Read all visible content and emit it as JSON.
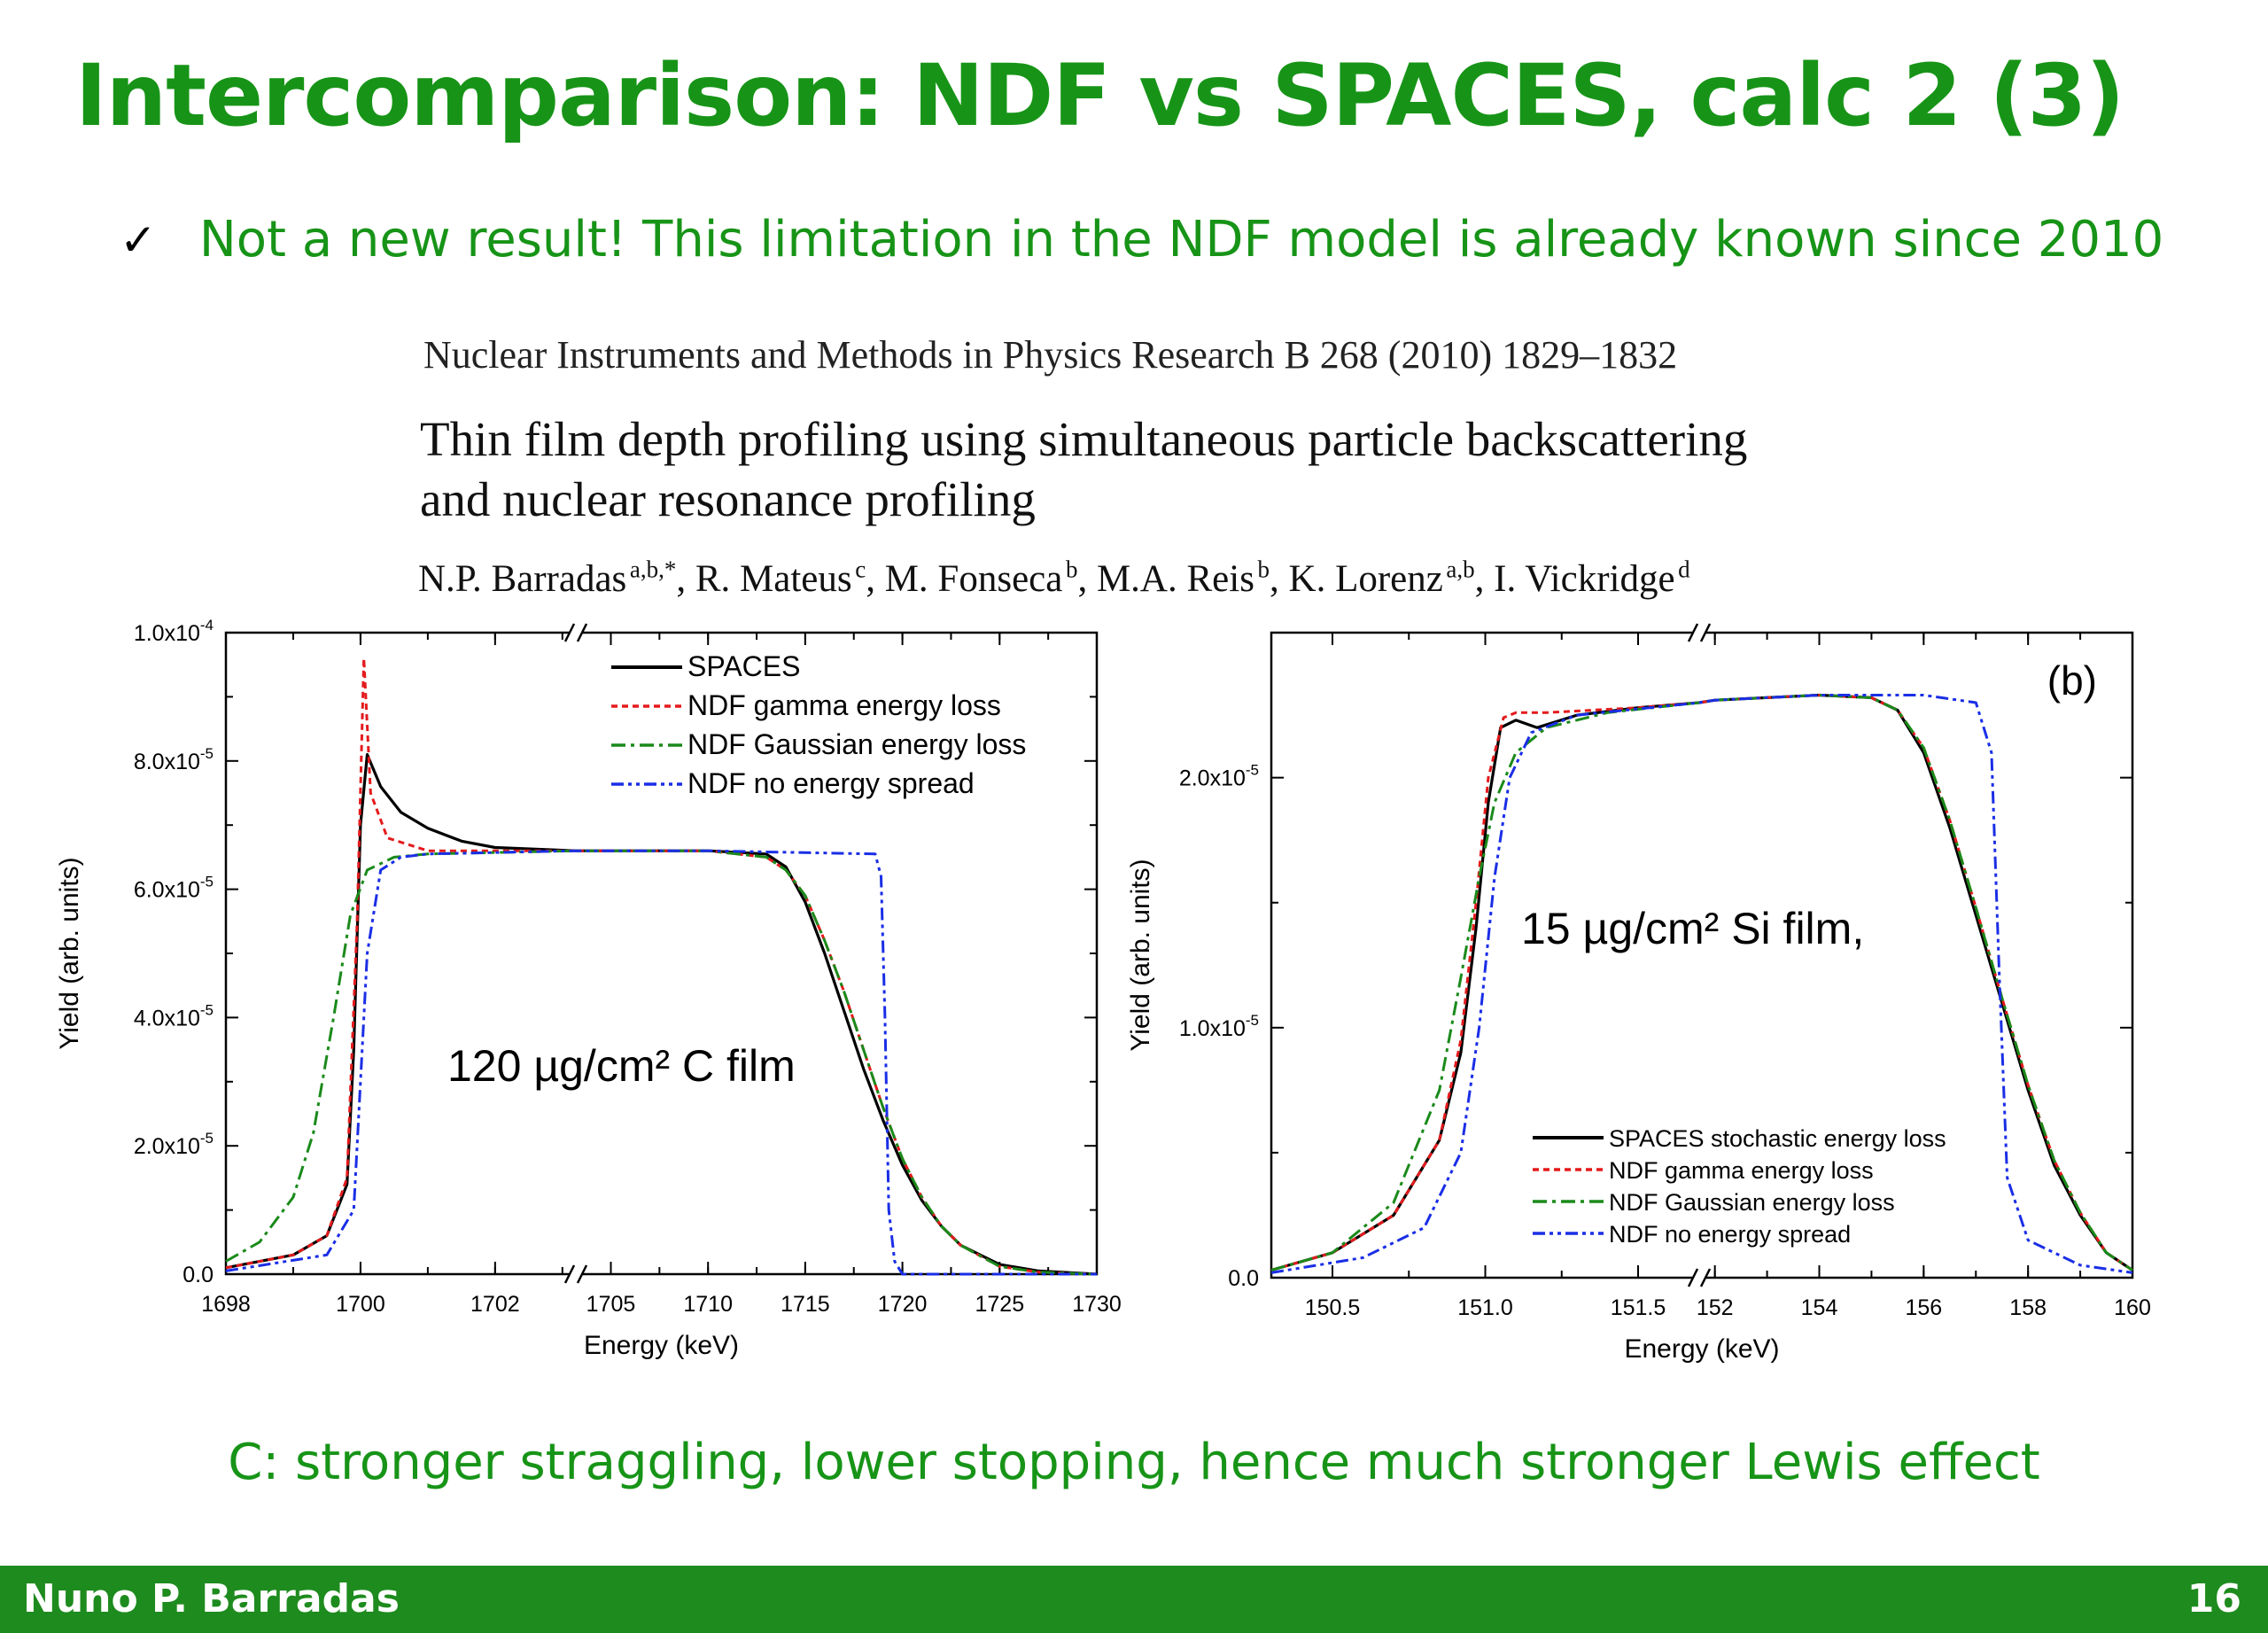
{
  "slide": {
    "title": "Intercomparison: NDF vs SPACES, calc 2 (3)",
    "bullet": "Not a new result! This limitation in the NDF model is already known since 2010",
    "bullet_icon": "check-icon",
    "conclusion": "C: stronger straggling, lower stopping, hence much stronger Lewis effect",
    "footer_author": "Nuno P. Barradas",
    "page_number": "16",
    "colors": {
      "title": "#179417",
      "footer": "#1e8b1e"
    }
  },
  "paper": {
    "journal": "Nuclear Instruments and Methods in Physics Research B 268 (2010) 1829–1832",
    "title_line1": "Thin film depth profiling using simultaneous particle backscattering",
    "title_line2": "and nuclear resonance profiling",
    "authors": [
      {
        "name": "N.P. Barradas",
        "aff": "a,b,*",
        "sep": ", "
      },
      {
        "name": "R. Mateus",
        "aff": "c",
        "sep": ", "
      },
      {
        "name": "M. Fonseca",
        "aff": "b",
        "sep": ", "
      },
      {
        "name": "M.A. Reis",
        "aff": "b",
        "sep": ", "
      },
      {
        "name": "K. Lorenz",
        "aff": "a,b",
        "sep": ", "
      },
      {
        "name": "I. Vickridge",
        "aff": "d",
        "sep": ""
      }
    ]
  },
  "chart_data": [
    {
      "type": "line",
      "xlabel": "Energy (keV)",
      "ylabel": "Yield (arb. units)",
      "annotation": "120 µg/cm² C film",
      "legend_position": "top-right",
      "broken_axis": true,
      "x_segments": [
        {
          "range": [
            1698,
            1703.2
          ],
          "ticks": [
            1698,
            1700,
            1702
          ],
          "tick_labels": [
            "1698",
            "1700",
            "1702"
          ]
        },
        {
          "range": [
            1703.2,
            1730
          ],
          "ticks": [
            1705,
            1710,
            1715,
            1720,
            1725,
            1730
          ],
          "tick_labels": [
            "1705",
            "1710",
            "1715",
            "1720",
            "1725",
            "1730"
          ]
        }
      ],
      "ylim": [
        0,
        0.0001
      ],
      "yticks": [
        0,
        2e-05,
        4e-05,
        6e-05,
        8e-05,
        0.0001
      ],
      "ytick_labels": [
        {
          "base": "0.0",
          "exp": ""
        },
        {
          "base": "2.0x10",
          "exp": "-5"
        },
        {
          "base": "4.0x10",
          "exp": "-5"
        },
        {
          "base": "6.0x10",
          "exp": "-5"
        },
        {
          "base": "8.0x10",
          "exp": "-5"
        },
        {
          "base": "1.0x10",
          "exp": "-4"
        }
      ],
      "series": [
        {
          "name": "SPACES",
          "color": "#000000",
          "dash": "solid",
          "points": [
            [
              1698,
              1e-06
            ],
            [
              1699,
              3e-06
            ],
            [
              1699.5,
              6e-06
            ],
            [
              1699.8,
              1.4e-05
            ],
            [
              1699.9,
              3.5e-05
            ],
            [
              1700.0,
              7e-05
            ],
            [
              1700.1,
              8.1e-05
            ],
            [
              1700.3,
              7.6e-05
            ],
            [
              1700.6,
              7.2e-05
            ],
            [
              1701,
              6.95e-05
            ],
            [
              1701.5,
              6.75e-05
            ],
            [
              1702,
              6.65e-05
            ],
            [
              1703.2,
              6.6e-05
            ],
            [
              1705,
              6.6e-05
            ],
            [
              1710,
              6.6e-05
            ],
            [
              1713,
              6.55e-05
            ],
            [
              1714,
              6.35e-05
            ],
            [
              1715,
              5.8e-05
            ],
            [
              1716,
              5e-05
            ],
            [
              1717,
              4.1e-05
            ],
            [
              1718,
              3.2e-05
            ],
            [
              1719,
              2.4e-05
            ],
            [
              1720,
              1.7e-05
            ],
            [
              1721,
              1.15e-05
            ],
            [
              1722,
              7.5e-06
            ],
            [
              1723,
              4.5e-06
            ],
            [
              1725,
              1.5e-06
            ],
            [
              1727,
              5e-07
            ],
            [
              1730,
              0.0
            ]
          ]
        },
        {
          "name": "NDF gamma energy loss",
          "color": "#e41a1c",
          "dash": "dotted",
          "points": [
            [
              1698,
              1e-06
            ],
            [
              1699,
              3e-06
            ],
            [
              1699.5,
              6e-06
            ],
            [
              1699.8,
              1.5e-05
            ],
            [
              1699.95,
              5.5e-05
            ],
            [
              1700.05,
              9.6e-05
            ],
            [
              1700.15,
              7.5e-05
            ],
            [
              1700.4,
              6.8e-05
            ],
            [
              1701,
              6.6e-05
            ],
            [
              1703.2,
              6.6e-05
            ],
            [
              1710,
              6.6e-05
            ],
            [
              1713,
              6.5e-05
            ],
            [
              1714,
              6.3e-05
            ],
            [
              1715,
              5.9e-05
            ],
            [
              1716,
              5.2e-05
            ],
            [
              1717,
              4.4e-05
            ],
            [
              1718,
              3.5e-05
            ],
            [
              1719,
              2.6e-05
            ],
            [
              1720,
              1.8e-05
            ],
            [
              1721,
              1.2e-05
            ],
            [
              1722,
              7.5e-06
            ],
            [
              1723,
              4.5e-06
            ],
            [
              1725,
              1.2e-06
            ],
            [
              1727,
              3e-07
            ],
            [
              1730,
              0.0
            ]
          ]
        },
        {
          "name": "NDF Gaussian energy loss",
          "color": "#1a8a1a",
          "dash": "dashdot",
          "points": [
            [
              1698,
              2e-06
            ],
            [
              1698.5,
              5e-06
            ],
            [
              1699,
              1.2e-05
            ],
            [
              1699.3,
              2.2e-05
            ],
            [
              1699.6,
              4e-05
            ],
            [
              1699.85,
              5.6e-05
            ],
            [
              1700.1,
              6.3e-05
            ],
            [
              1700.5,
              6.5e-05
            ],
            [
              1701,
              6.55e-05
            ],
            [
              1703.2,
              6.6e-05
            ],
            [
              1710,
              6.6e-05
            ],
            [
              1713,
              6.5e-05
            ],
            [
              1714,
              6.3e-05
            ],
            [
              1715,
              5.9e-05
            ],
            [
              1716,
              5.2e-05
            ],
            [
              1717,
              4.4e-05
            ],
            [
              1718,
              3.5e-05
            ],
            [
              1719,
              2.6e-05
            ],
            [
              1720,
              1.8e-05
            ],
            [
              1721,
              1.2e-05
            ],
            [
              1722,
              7.5e-06
            ],
            [
              1723,
              4.5e-06
            ],
            [
              1725,
              1.2e-06
            ],
            [
              1727,
              3e-07
            ],
            [
              1730,
              0.0
            ]
          ]
        },
        {
          "name": "NDF no energy spread",
          "color": "#1a2ee6",
          "dash": "dashdotdot",
          "points": [
            [
              1698,
              5e-07
            ],
            [
              1699.5,
              3e-06
            ],
            [
              1699.9,
              1e-05
            ],
            [
              1700.1,
              5e-05
            ],
            [
              1700.3,
              6.3e-05
            ],
            [
              1700.6,
              6.5e-05
            ],
            [
              1701,
              6.55e-05
            ],
            [
              1703.2,
              6.6e-05
            ],
            [
              1710,
              6.6e-05
            ],
            [
              1718.6,
              6.55e-05
            ],
            [
              1718.9,
              6.2e-05
            ],
            [
              1719.1,
              4e-05
            ],
            [
              1719.3,
              1e-05
            ],
            [
              1719.6,
              2e-06
            ],
            [
              1720,
              0.0
            ],
            [
              1730,
              0.0
            ]
          ]
        }
      ]
    },
    {
      "type": "line",
      "xlabel": "Energy (keV)",
      "ylabel": "Yield (arb. units)",
      "panel_label": "(b)",
      "annotation": "15 µg/cm² Si film,",
      "legend_position": "bottom-right",
      "broken_axis": true,
      "x_segments": [
        {
          "range": [
            150.3,
            151.7
          ],
          "ticks": [
            150.5,
            151.0,
            151.5
          ],
          "tick_labels": [
            "150.5",
            "151.0",
            "151.5"
          ]
        },
        {
          "range": [
            151.7,
            160
          ],
          "ticks": [
            152,
            154,
            156,
            158,
            160
          ],
          "tick_labels": [
            "152",
            "154",
            "156",
            "158",
            "160"
          ]
        }
      ],
      "ylim": [
        0,
        2.58e-05
      ],
      "yticks": [
        0,
        1e-05,
        2e-05
      ],
      "ytick_labels": [
        {
          "base": "0.0",
          "exp": ""
        },
        {
          "base": "1.0x10",
          "exp": "-5"
        },
        {
          "base": "2.0x10",
          "exp": "-5"
        }
      ],
      "series": [
        {
          "name": "SPACES stochastic energy loss",
          "color": "#000000",
          "dash": "solid",
          "points": [
            [
              150.3,
              3e-07
            ],
            [
              150.5,
              1e-06
            ],
            [
              150.7,
              2.5e-06
            ],
            [
              150.85,
              5.5e-06
            ],
            [
              150.92,
              9e-06
            ],
            [
              150.97,
              1.4e-05
            ],
            [
              151.01,
              1.9e-05
            ],
            [
              151.05,
              2.2e-05
            ],
            [
              151.1,
              2.23e-05
            ],
            [
              151.17,
              2.2e-05
            ],
            [
              151.3,
              2.25e-05
            ],
            [
              151.5,
              2.28e-05
            ],
            [
              151.7,
              2.3e-05
            ],
            [
              152,
              2.31e-05
            ],
            [
              154,
              2.33e-05
            ],
            [
              155,
              2.32e-05
            ],
            [
              155.5,
              2.27e-05
            ],
            [
              156,
              2.1e-05
            ],
            [
              156.5,
              1.8e-05
            ],
            [
              157,
              1.45e-05
            ],
            [
              157.5,
              1.1e-05
            ],
            [
              158,
              7.5e-06
            ],
            [
              158.5,
              4.5e-06
            ],
            [
              159,
              2.5e-06
            ],
            [
              159.5,
              1e-06
            ],
            [
              160,
              3e-07
            ]
          ]
        },
        {
          "name": "NDF gamma energy loss",
          "color": "#e41a1c",
          "dash": "dotted",
          "points": [
            [
              150.3,
              3e-07
            ],
            [
              150.5,
              1e-06
            ],
            [
              150.7,
              2.5e-06
            ],
            [
              150.85,
              5.5e-06
            ],
            [
              150.92,
              9.5e-06
            ],
            [
              150.97,
              1.5e-05
            ],
            [
              151.01,
              2e-05
            ],
            [
              151.06,
              2.24e-05
            ],
            [
              151.1,
              2.26e-05
            ],
            [
              151.2,
              2.26e-05
            ],
            [
              151.5,
              2.28e-05
            ],
            [
              151.7,
              2.3e-05
            ],
            [
              152,
              2.31e-05
            ],
            [
              154,
              2.33e-05
            ],
            [
              155,
              2.32e-05
            ],
            [
              155.5,
              2.27e-05
            ],
            [
              156,
              2.12e-05
            ],
            [
              156.5,
              1.83e-05
            ],
            [
              157,
              1.48e-05
            ],
            [
              157.5,
              1.12e-05
            ],
            [
              158,
              7.7e-06
            ],
            [
              158.5,
              4.7e-06
            ],
            [
              159,
              2.6e-06
            ],
            [
              159.5,
              1e-06
            ],
            [
              160,
              3e-07
            ]
          ]
        },
        {
          "name": "NDF Gaussian energy loss",
          "color": "#1a8a1a",
          "dash": "dashdot",
          "points": [
            [
              150.3,
              3e-07
            ],
            [
              150.5,
              1e-06
            ],
            [
              150.7,
              3e-06
            ],
            [
              150.85,
              7.5e-06
            ],
            [
              150.92,
              1.2e-05
            ],
            [
              150.98,
              1.6e-05
            ],
            [
              151.03,
              1.9e-05
            ],
            [
              151.1,
              2.1e-05
            ],
            [
              151.2,
              2.2e-05
            ],
            [
              151.4,
              2.26e-05
            ],
            [
              151.7,
              2.3e-05
            ],
            [
              152,
              2.31e-05
            ],
            [
              154,
              2.33e-05
            ],
            [
              155,
              2.32e-05
            ],
            [
              155.5,
              2.27e-05
            ],
            [
              156,
              2.12e-05
            ],
            [
              156.5,
              1.83e-05
            ],
            [
              157,
              1.48e-05
            ],
            [
              157.5,
              1.12e-05
            ],
            [
              158,
              7.7e-06
            ],
            [
              158.5,
              4.7e-06
            ],
            [
              159,
              2.6e-06
            ],
            [
              159.5,
              1e-06
            ],
            [
              160,
              3e-07
            ]
          ]
        },
        {
          "name": "NDF no energy spread",
          "color": "#1a2ee6",
          "dash": "dashdotdot",
          "points": [
            [
              150.3,
              2e-07
            ],
            [
              150.6,
              8e-07
            ],
            [
              150.8,
              2e-06
            ],
            [
              150.92,
              5e-06
            ],
            [
              150.98,
              1e-05
            ],
            [
              151.03,
              1.6e-05
            ],
            [
              151.08,
              2e-05
            ],
            [
              151.15,
              2.18e-05
            ],
            [
              151.3,
              2.25e-05
            ],
            [
              151.7,
              2.3e-05
            ],
            [
              152,
              2.31e-05
            ],
            [
              154,
              2.33e-05
            ],
            [
              156,
              2.33e-05
            ],
            [
              157,
              2.3e-05
            ],
            [
              157.3,
              2.1e-05
            ],
            [
              157.45,
              1.2e-05
            ],
            [
              157.6,
              4e-06
            ],
            [
              158,
              1.5e-06
            ],
            [
              159,
              5e-07
            ],
            [
              160,
              2e-07
            ]
          ]
        }
      ]
    }
  ]
}
